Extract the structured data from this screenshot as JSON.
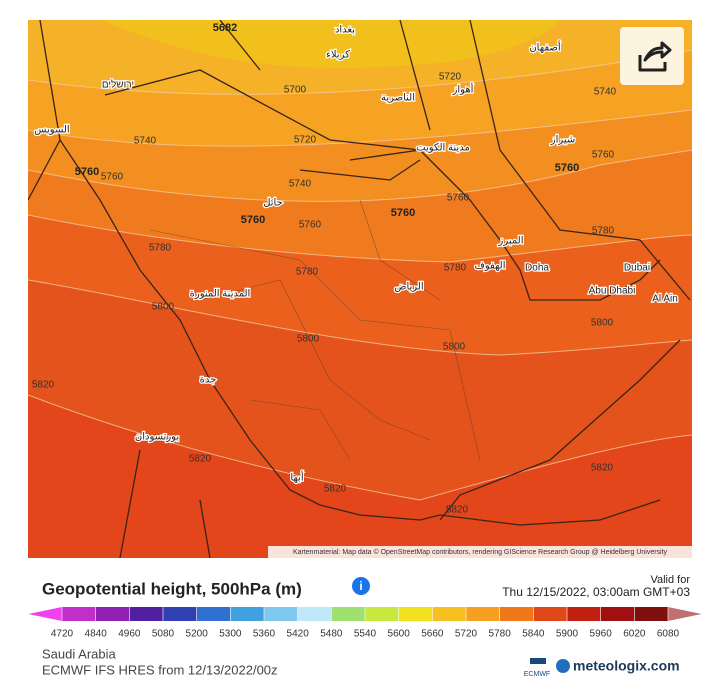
{
  "map": {
    "contour_labels": [
      5682,
      5700,
      5720,
      5740,
      5740,
      5720,
      5760,
      5760,
      5740,
      5760,
      5760,
      5760,
      5760,
      5760,
      5760,
      5780,
      5780,
      5780,
      5780,
      5800,
      5800,
      5800,
      5800,
      5820,
      5820,
      5820,
      5820,
      5820
    ],
    "places": [
      "بغداد",
      "كربلاء",
      "أصفهان",
      "أهواز",
      "الناصرية",
      "مدينة الكويت",
      "شيراز",
      "حائل",
      "المبرز",
      "الهفوف",
      "Doha",
      "Dubai",
      "Abu Dhabi",
      "Al Ain",
      "الرياض",
      "المدينة المنورة",
      "جدة",
      "بورتسودان",
      "أبها",
      "السويس",
      "ירושלים"
    ],
    "attribution": "Kartenmaterial: Map data © OpenStreetMap contributors, rendering GIScience Research Group @ Heidelberg University"
  },
  "legend": {
    "title": "Geopotential height, 500hPa (m)",
    "valid_label": "Valid for",
    "valid_time": "Thu 12/15/2022, 03:00am GMT+03",
    "ticks": [
      4720,
      4840,
      4960,
      5080,
      5200,
      5300,
      5360,
      5420,
      5480,
      5540,
      5600,
      5660,
      5720,
      5780,
      5840,
      5900,
      5960,
      6020,
      6080
    ],
    "colors": [
      "#f040f0",
      "#c030c8",
      "#9020b0",
      "#5020a0",
      "#3040b0",
      "#3070d0",
      "#40a0e0",
      "#80c8f0",
      "#c0e8f8",
      "#a0e070",
      "#c8e840",
      "#f0e020",
      "#f5c020",
      "#f5a020",
      "#f07818",
      "#e04818",
      "#c02010",
      "#a01010",
      "#801010",
      "#c07070"
    ]
  },
  "footer": {
    "region": "Saudi Arabia",
    "model": "ECMWF IFS HRES from 12/13/2022/00z",
    "ecmwf": "ECMWF",
    "brand": "meteologix.com"
  }
}
